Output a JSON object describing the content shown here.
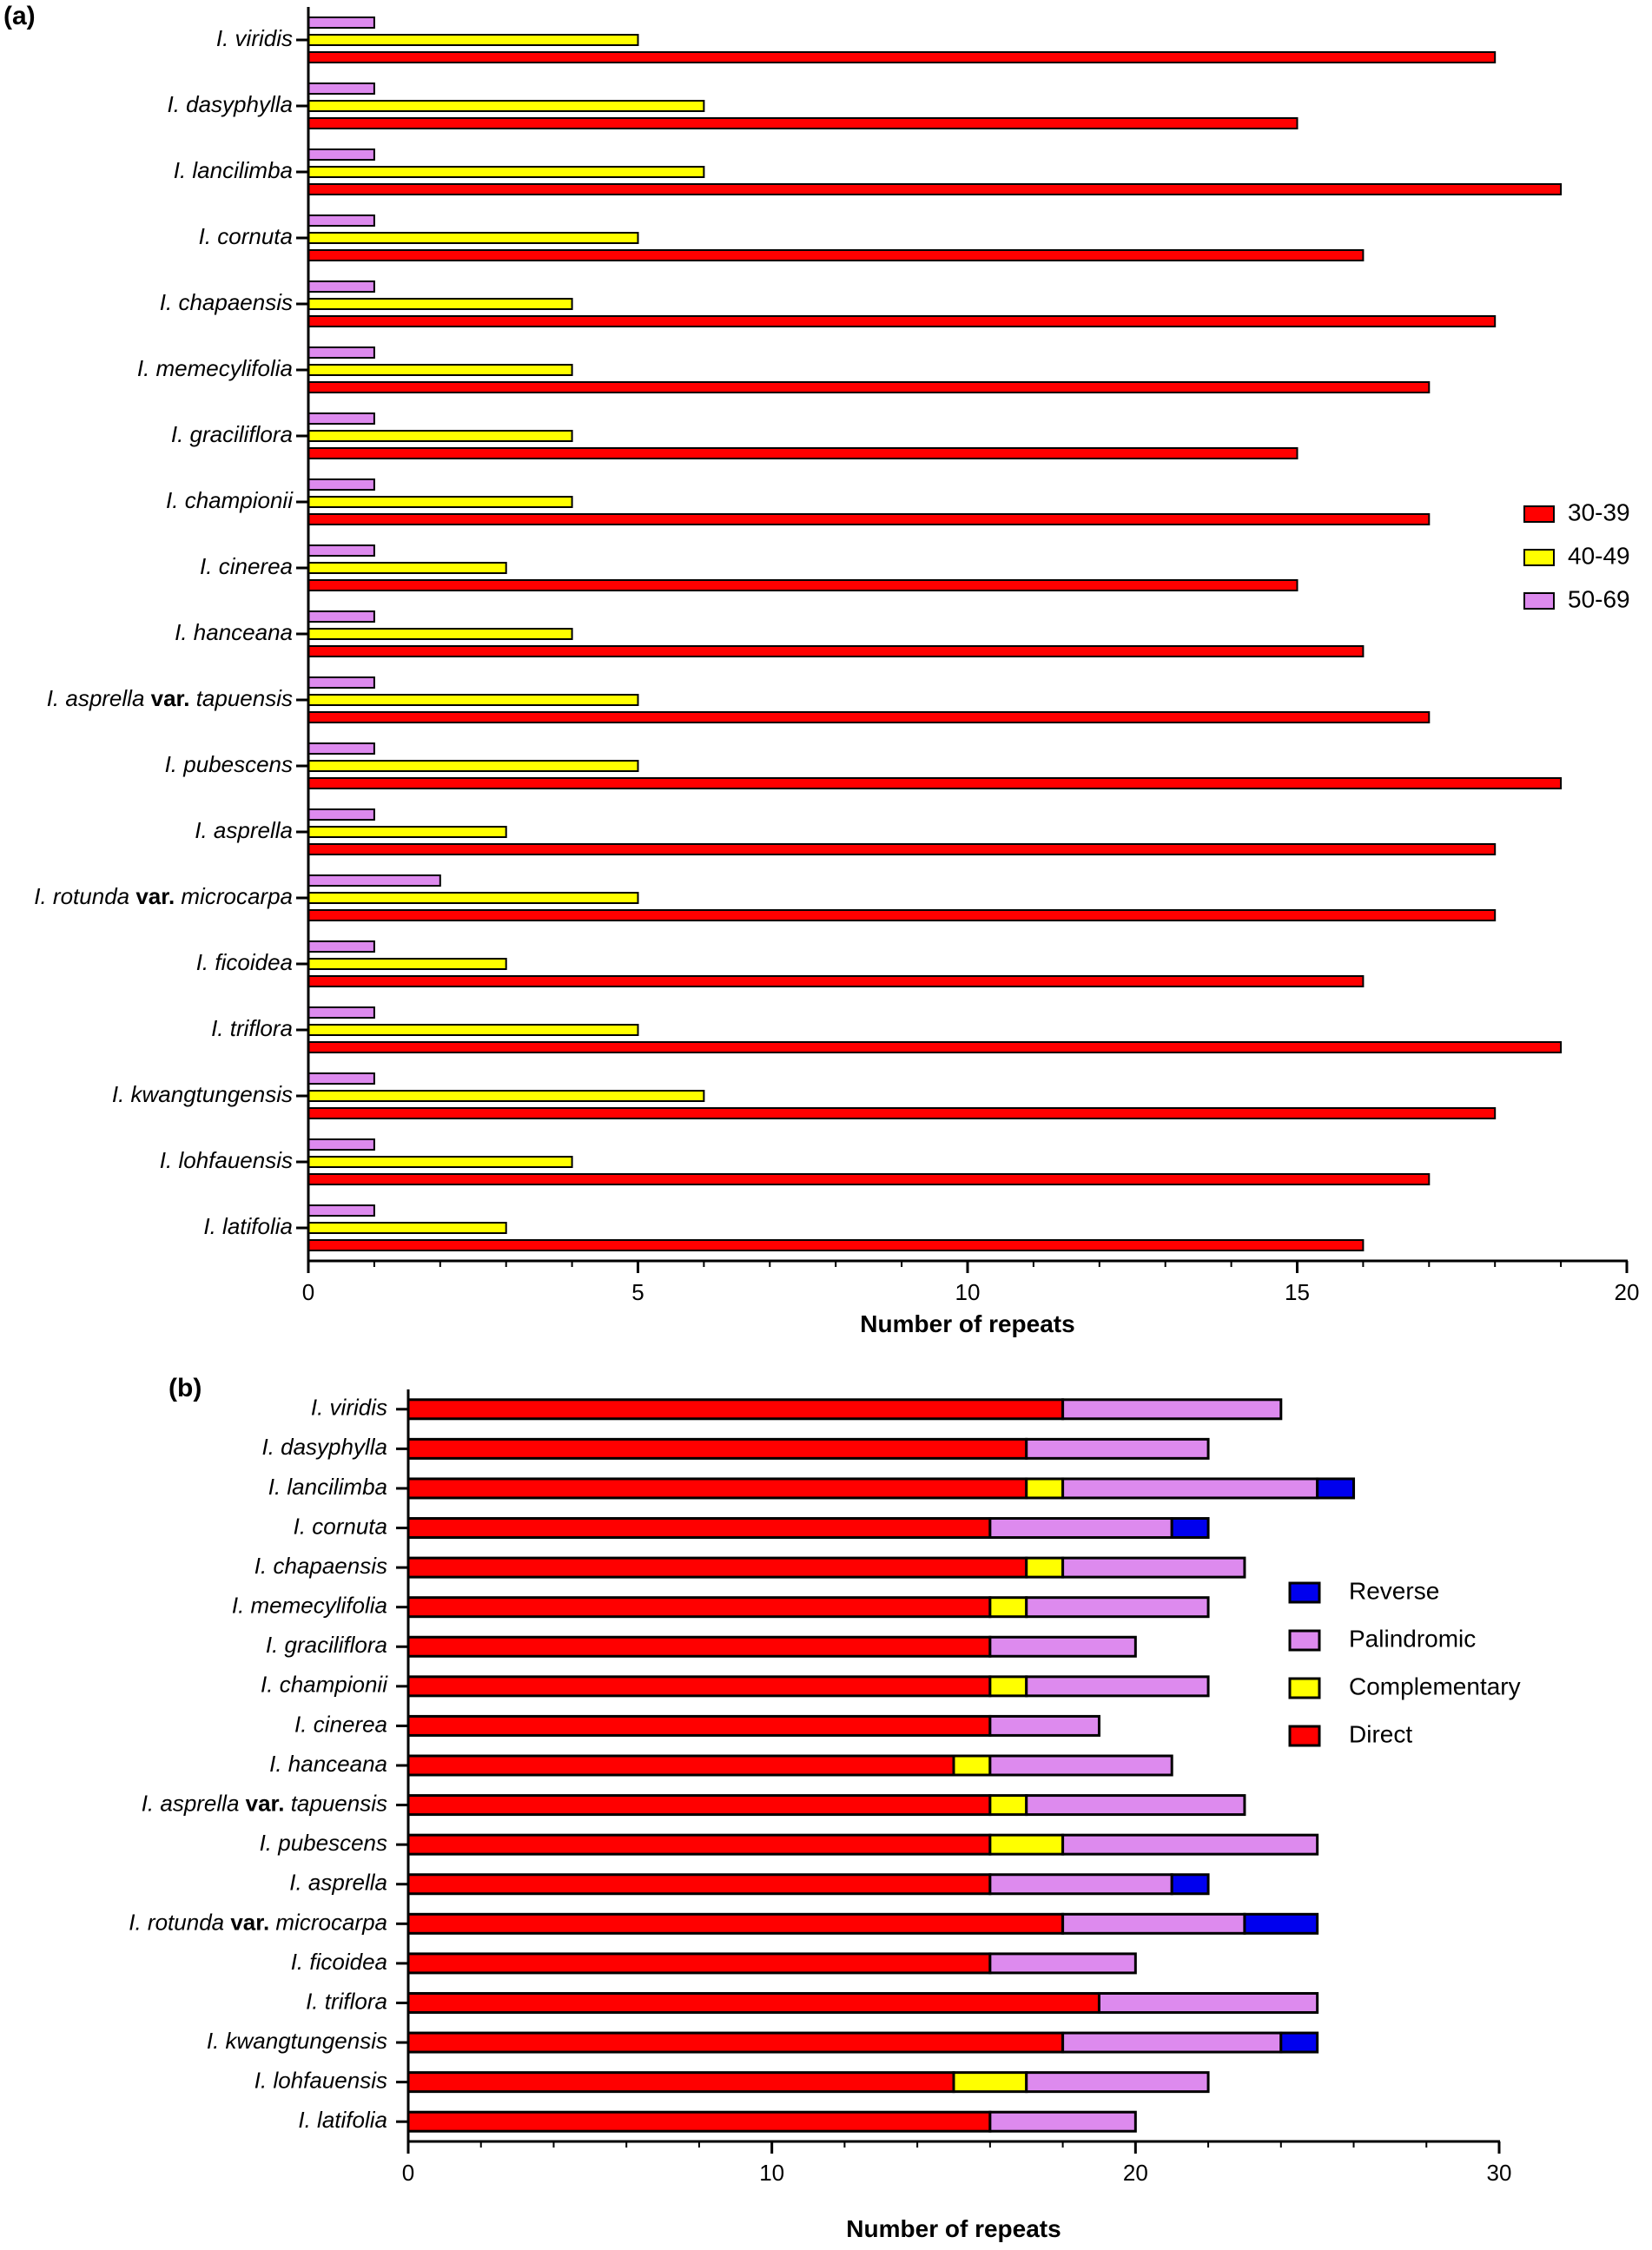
{
  "chart_data": [
    {
      "panel": "(a)",
      "type": "bar",
      "orientation": "horizontal",
      "grouped": true,
      "categories": [
        "I. viridis",
        "I. dasyphylla",
        "I. lancilimba",
        "I. cornuta",
        "I. chapaensis",
        "I. memecylifolia",
        "I. graciliflora",
        "I. championii",
        "I. cinerea",
        "I. hanceana",
        "I. asprella var. tapuensis",
        "I. pubescens",
        "I. asprella",
        "I. rotunda var. microcarpa",
        "I. ficoidea",
        "I. triflora",
        "I. kwangtungensis",
        "I. lohfauensis",
        "I. latifolia"
      ],
      "series": [
        {
          "name": "50-69",
          "color": "#dd8aee",
          "values": [
            1,
            1,
            1,
            1,
            1,
            1,
            1,
            1,
            1,
            1,
            1,
            1,
            1,
            2,
            1,
            1,
            1,
            1,
            1
          ]
        },
        {
          "name": "40-49",
          "color": "#ffff00",
          "values": [
            5,
            6,
            6,
            5,
            4,
            4,
            4,
            4,
            3,
            4,
            5,
            5,
            3,
            5,
            3,
            5,
            6,
            4,
            3
          ]
        },
        {
          "name": "30-39",
          "color": "#ff0000",
          "values": [
            18,
            15,
            19,
            16,
            18,
            17,
            15,
            17,
            15,
            16,
            17,
            19,
            18,
            18,
            16,
            19,
            18,
            17,
            16
          ]
        }
      ],
      "legend_order": [
        "30-39",
        "40-49",
        "50-69"
      ],
      "xlabel": "Number of repeats",
      "xlim": [
        0,
        20
      ],
      "xticks": [
        0,
        5,
        10,
        15,
        20
      ],
      "legend_position": "right"
    },
    {
      "panel": "(b)",
      "type": "bar",
      "orientation": "horizontal",
      "stacked": true,
      "categories": [
        "I. viridis",
        "I. dasyphylla",
        "I. lancilimba",
        "I. cornuta",
        "I. chapaensis",
        "I. memecylifolia",
        "I. graciliflora",
        "I. championii",
        "I. cinerea",
        "I. hanceana",
        "I. asprella var. tapuensis",
        "I. pubescens",
        "I. asprella",
        "I. rotunda var. microcarpa",
        "I. ficoidea",
        "I. triflora",
        "I. kwangtungensis",
        "I. lohfauensis",
        "I. latifolia"
      ],
      "series": [
        {
          "name": "Direct",
          "color": "#ff0000",
          "values": [
            18,
            17,
            17,
            16,
            17,
            16,
            16,
            16,
            16,
            15,
            16,
            16,
            16,
            18,
            16,
            19,
            18,
            15,
            16
          ]
        },
        {
          "name": "Complementary",
          "color": "#ffff00",
          "values": [
            0,
            0,
            1,
            0,
            1,
            1,
            0,
            1,
            0,
            1,
            1,
            2,
            0,
            0,
            0,
            0,
            0,
            2,
            0
          ]
        },
        {
          "name": "Palindromic",
          "color": "#dd8aee",
          "values": [
            6,
            5,
            7,
            5,
            5,
            5,
            4,
            5,
            3,
            5,
            6,
            7,
            5,
            5,
            4,
            6,
            6,
            5,
            4
          ]
        },
        {
          "name": "Reverse",
          "color": "#0000ee",
          "values": [
            0,
            0,
            1,
            1,
            0,
            0,
            0,
            0,
            0,
            0,
            0,
            0,
            1,
            2,
            0,
            0,
            1,
            0,
            0
          ]
        }
      ],
      "legend_order": [
        "Reverse",
        "Palindromic",
        "Complementary",
        "Direct"
      ],
      "xlabel": "Number of repeats",
      "xlim": [
        0,
        30
      ],
      "xticks": [
        0,
        10,
        20,
        30
      ],
      "legend_position": "right"
    }
  ]
}
